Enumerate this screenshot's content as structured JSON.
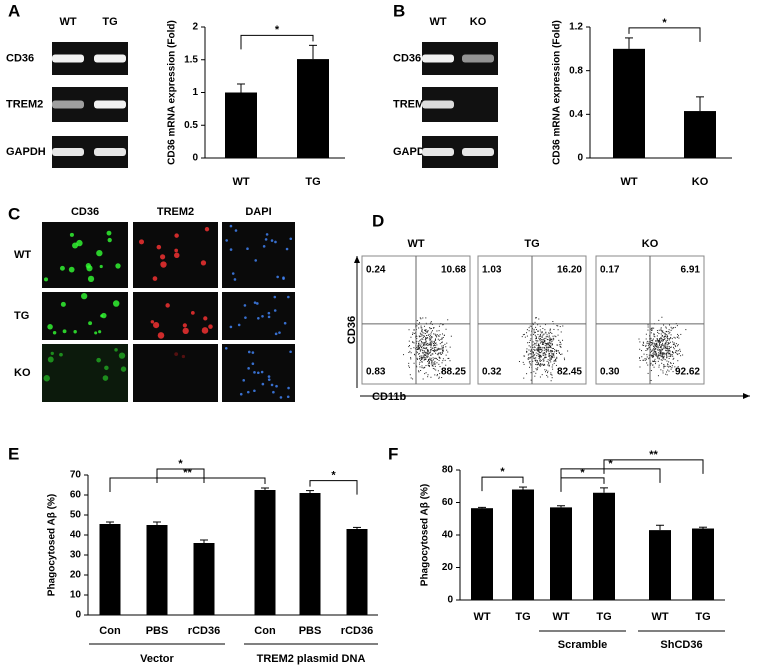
{
  "panels": [
    "A",
    "B",
    "C",
    "D",
    "E",
    "F"
  ],
  "gel_a": {
    "lanes": [
      "WT",
      "TG"
    ],
    "rows": [
      "CD36",
      "TREM2",
      "GAPDH"
    ]
  },
  "gel_b": {
    "lanes": [
      "WT",
      "KO"
    ],
    "rows": [
      "CD36",
      "TREM2",
      "GAPDH"
    ]
  },
  "microscopy": {
    "columns": [
      "CD36",
      "TREM2",
      "DAPI"
    ],
    "rows": [
      "WT",
      "TG",
      "KO"
    ]
  },
  "flow": {
    "y_label": "CD36",
    "x_label": "CD11b",
    "plots": [
      {
        "name": "WT",
        "quadrants": [
          "0.24",
          "10.68",
          "0.83",
          "88.25"
        ]
      },
      {
        "name": "TG",
        "quadrants": [
          "1.03",
          "16.20",
          "0.32",
          "82.45"
        ]
      },
      {
        "name": "KO",
        "quadrants": [
          "0.17",
          "6.91",
          "0.30",
          "92.62"
        ]
      }
    ]
  },
  "chart_data": [
    {
      "type": "bar",
      "y_label": "CD36 mRNA  expression (Fold)",
      "categories": [
        "WT",
        "TG"
      ],
      "values": [
        1.0,
        1.51
      ],
      "errors": [
        0.13,
        0.21
      ],
      "color": "#000000",
      "ylim": [
        0,
        2
      ],
      "yticks": [
        0,
        0.5,
        1,
        1.5,
        2
      ],
      "significance": [
        {
          "from": 0,
          "to": 1,
          "label": "*"
        }
      ]
    },
    {
      "type": "bar",
      "y_label": "CD36 mRNA  expression (Fold)",
      "categories": [
        "WT",
        "KO"
      ],
      "values": [
        1.0,
        0.43
      ],
      "errors": [
        0.1,
        0.13
      ],
      "color": "#000000",
      "ylim": [
        0,
        1.2
      ],
      "yticks": [
        0,
        0.4,
        0.8,
        1.2
      ],
      "significance": [
        {
          "from": 0,
          "to": 1,
          "label": "*"
        }
      ]
    },
    {
      "type": "bar",
      "y_label": "Phagocytosed Aβ (%)",
      "categories": [
        "Con",
        "PBS",
        "rCD36",
        "Con",
        "PBS",
        "rCD36"
      ],
      "values": [
        45.5,
        45,
        36,
        62.5,
        61,
        43
      ],
      "errors": [
        1,
        1.5,
        1.5,
        1,
        1.2,
        0.8
      ],
      "color": "#000000",
      "ylim": [
        0,
        70
      ],
      "yticks": [
        0,
        10,
        20,
        30,
        40,
        50,
        60,
        70
      ],
      "groups": [
        {
          "label": "Vector",
          "from": 0,
          "to": 2
        },
        {
          "label": "TREM2 plasmid DNA",
          "from": 3,
          "to": 5
        }
      ],
      "significance": [
        {
          "from": 0,
          "to": 3,
          "label": "**"
        },
        {
          "from": 1,
          "to": 2,
          "label": "*"
        },
        {
          "from": 4,
          "to": 5,
          "label": "*"
        }
      ]
    },
    {
      "type": "bar",
      "y_label": "Phagocytosed Aβ (%)",
      "categories": [
        "WT",
        "TG",
        "WT",
        "TG",
        "WT",
        "TG"
      ],
      "values": [
        56.5,
        68,
        57,
        66,
        43,
        44
      ],
      "errors": [
        0.5,
        1.5,
        1,
        3,
        3,
        0.8
      ],
      "color": "#000000",
      "ylim": [
        0,
        80
      ],
      "yticks": [
        0,
        20,
        40,
        60,
        80
      ],
      "groups": [
        {
          "label": "Scramble",
          "from": 2,
          "to": 3
        },
        {
          "label": "ShCD36",
          "from": 4,
          "to": 5
        }
      ],
      "significance": [
        {
          "from": 0,
          "to": 1,
          "label": "*"
        },
        {
          "from": 2,
          "to": 3,
          "label": "*"
        },
        {
          "from": 2,
          "to": 4,
          "label": "*"
        },
        {
          "from": 3,
          "to": 5,
          "label": "**"
        }
      ]
    }
  ]
}
